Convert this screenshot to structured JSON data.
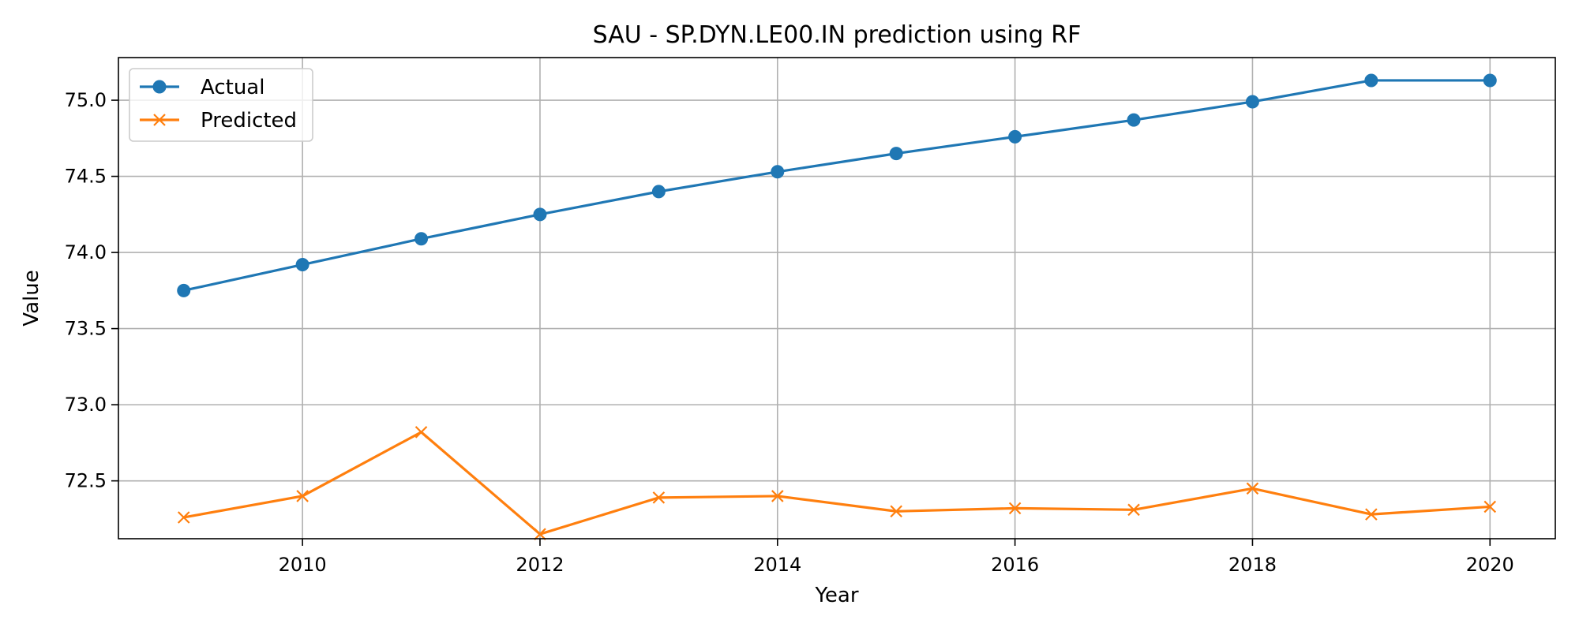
{
  "chart_data": {
    "type": "line",
    "title": "SAU - SP.DYN.LE00.IN prediction using RF",
    "xlabel": "Year",
    "ylabel": "Value",
    "x": [
      2009,
      2010,
      2011,
      2012,
      2013,
      2014,
      2015,
      2016,
      2017,
      2018,
      2019,
      2020
    ],
    "xlim": [
      2008.45,
      2020.55
    ],
    "ylim": [
      72.12,
      75.28
    ],
    "xticks": [
      2010,
      2012,
      2014,
      2016,
      2018,
      2020
    ],
    "xtick_labels": [
      "2010",
      "2012",
      "2014",
      "2016",
      "2018",
      "2020"
    ],
    "yticks": [
      72.5,
      73.0,
      73.5,
      74.0,
      74.5,
      75.0
    ],
    "ytick_labels": [
      "72.5",
      "73.0",
      "73.5",
      "74.0",
      "74.5",
      "75.0"
    ],
    "grid": true,
    "legend_position": "top-left",
    "series": [
      {
        "name": "Actual",
        "marker": "circle",
        "color": "#1f77b4",
        "values": [
          73.75,
          73.92,
          74.09,
          74.25,
          74.4,
          74.53,
          74.65,
          74.76,
          74.87,
          74.99,
          75.13,
          75.13
        ]
      },
      {
        "name": "Predicted",
        "marker": "x",
        "color": "#ff7f0e",
        "values": [
          72.26,
          72.4,
          72.82,
          72.15,
          72.39,
          72.4,
          72.3,
          72.32,
          72.31,
          72.45,
          72.28,
          72.33
        ]
      }
    ]
  }
}
